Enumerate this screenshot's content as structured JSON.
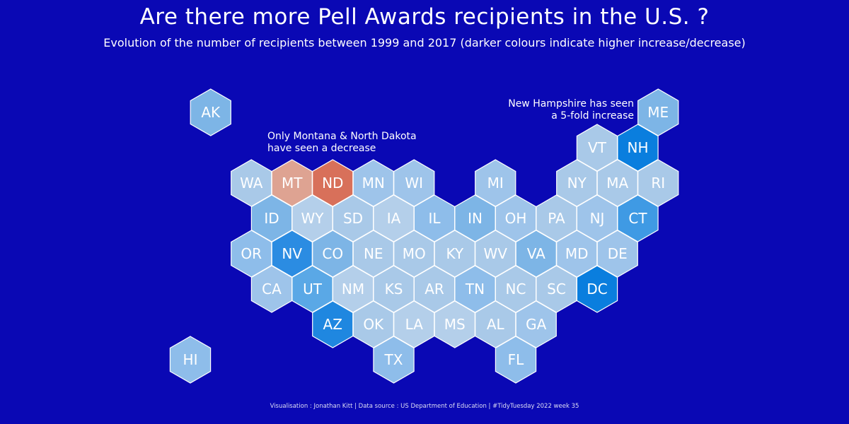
{
  "title": "Are there more Pell Awards recipients in the U.S. ?",
  "subtitle": "Evolution of the number of recipients between 1999 and 2017 (darker colours indicate higher increase/decrease)",
  "annotations": {
    "decrease_line1": "Only Montana & North Dakota",
    "decrease_line2": "have seen a decrease",
    "increase_line1": "New Hampshire has seen",
    "increase_line2": "a 5-fold increase"
  },
  "caption": "Visualisation : Jonathan Kitt | Data source : US Department of Education | #TidyTuesday 2022 week 35",
  "colors": {
    "background": "#0a08b4",
    "stroke": "#ffffff",
    "increase_light": "#a9c9e8",
    "increase_mid": "#7db5e6",
    "increase_dark": "#0a7ede",
    "decrease_light": "#dea392",
    "decrease_dark": "#d8705a"
  },
  "chart_data": {
    "type": "hex-tile-map",
    "title": "Are there more Pell Awards recipients in the U.S. ?",
    "legend": "none",
    "states": [
      {
        "code": "AK",
        "row": 0,
        "col": 0.5,
        "color": "#7db5e6"
      },
      {
        "code": "ME",
        "row": 0,
        "col": 11.5,
        "color": "#7db5e6"
      },
      {
        "code": "VT",
        "row": 1,
        "col": 10,
        "color": "#a9c9e8"
      },
      {
        "code": "NH",
        "row": 1,
        "col": 11,
        "color": "#0a7ede"
      },
      {
        "code": "WA",
        "row": 2,
        "col": 1.5,
        "color": "#a9c9e8"
      },
      {
        "code": "MT",
        "row": 2,
        "col": 2.5,
        "color": "#dea392"
      },
      {
        "code": "ND",
        "row": 2,
        "col": 3.5,
        "color": "#d8705a"
      },
      {
        "code": "MN",
        "row": 2,
        "col": 4.5,
        "color": "#9ec4ea"
      },
      {
        "code": "WI",
        "row": 2,
        "col": 5.5,
        "color": "#9ec4ea"
      },
      {
        "code": "MI",
        "row": 2,
        "col": 7.5,
        "color": "#9ec4ea"
      },
      {
        "code": "NY",
        "row": 2,
        "col": 9.5,
        "color": "#a9c9e8"
      },
      {
        "code": "MA",
        "row": 2,
        "col": 10.5,
        "color": "#a9c9e8"
      },
      {
        "code": "RI",
        "row": 2,
        "col": 11.5,
        "color": "#a9c9e8"
      },
      {
        "code": "ID",
        "row": 3,
        "col": 2,
        "color": "#7db5e6"
      },
      {
        "code": "WY",
        "row": 3,
        "col": 3,
        "color": "#b4cfea"
      },
      {
        "code": "SD",
        "row": 3,
        "col": 4,
        "color": "#a9c9e8"
      },
      {
        "code": "IA",
        "row": 3,
        "col": 5,
        "color": "#b4cfea"
      },
      {
        "code": "IL",
        "row": 3,
        "col": 6,
        "color": "#8ebdea"
      },
      {
        "code": "IN",
        "row": 3,
        "col": 7,
        "color": "#7db5e6"
      },
      {
        "code": "OH",
        "row": 3,
        "col": 8,
        "color": "#9ec4ea"
      },
      {
        "code": "PA",
        "row": 3,
        "col": 9,
        "color": "#a9c9e8"
      },
      {
        "code": "NJ",
        "row": 3,
        "col": 10,
        "color": "#9ec4ea"
      },
      {
        "code": "CT",
        "row": 3,
        "col": 11,
        "color": "#3f9ae4"
      },
      {
        "code": "OR",
        "row": 4,
        "col": 1.5,
        "color": "#8ebdea"
      },
      {
        "code": "NV",
        "row": 4,
        "col": 2.5,
        "color": "#2b8ce2"
      },
      {
        "code": "CO",
        "row": 4,
        "col": 3.5,
        "color": "#7db5e6"
      },
      {
        "code": "NE",
        "row": 4,
        "col": 4.5,
        "color": "#a9c9e8"
      },
      {
        "code": "MO",
        "row": 4,
        "col": 5.5,
        "color": "#a9c9e8"
      },
      {
        "code": "KY",
        "row": 4,
        "col": 6.5,
        "color": "#a9c9e8"
      },
      {
        "code": "WV",
        "row": 4,
        "col": 7.5,
        "color": "#a9c9e8"
      },
      {
        "code": "VA",
        "row": 4,
        "col": 8.5,
        "color": "#7db5e6"
      },
      {
        "code": "MD",
        "row": 4,
        "col": 9.5,
        "color": "#9ec4ea"
      },
      {
        "code": "DE",
        "row": 4,
        "col": 10.5,
        "color": "#9ec4ea"
      },
      {
        "code": "CA",
        "row": 5,
        "col": 2,
        "color": "#9ec4ea"
      },
      {
        "code": "UT",
        "row": 5,
        "col": 3,
        "color": "#5aa8e6"
      },
      {
        "code": "NM",
        "row": 5,
        "col": 4,
        "color": "#b4cfea"
      },
      {
        "code": "KS",
        "row": 5,
        "col": 5,
        "color": "#a9c9e8"
      },
      {
        "code": "AR",
        "row": 5,
        "col": 6,
        "color": "#a9c9e8"
      },
      {
        "code": "TN",
        "row": 5,
        "col": 7,
        "color": "#8ebdea"
      },
      {
        "code": "NC",
        "row": 5,
        "col": 8,
        "color": "#a9c9e8"
      },
      {
        "code": "SC",
        "row": 5,
        "col": 9,
        "color": "#a9c9e8"
      },
      {
        "code": "DC",
        "row": 5,
        "col": 10,
        "color": "#0a7ede"
      },
      {
        "code": "AZ",
        "row": 6,
        "col": 3.5,
        "color": "#1f87e0"
      },
      {
        "code": "OK",
        "row": 6,
        "col": 4.5,
        "color": "#a9c9e8"
      },
      {
        "code": "LA",
        "row": 6,
        "col": 5.5,
        "color": "#b4cfea"
      },
      {
        "code": "MS",
        "row": 6,
        "col": 6.5,
        "color": "#b4cfea"
      },
      {
        "code": "AL",
        "row": 6,
        "col": 7.5,
        "color": "#a9c9e8"
      },
      {
        "code": "GA",
        "row": 6,
        "col": 8.5,
        "color": "#9ec4ea"
      },
      {
        "code": "HI",
        "row": 7,
        "col": 0,
        "color": "#8ebdea"
      },
      {
        "code": "TX",
        "row": 7,
        "col": 5,
        "color": "#8ebdea"
      },
      {
        "code": "FL",
        "row": 7,
        "col": 8,
        "color": "#8ebdea"
      }
    ]
  }
}
